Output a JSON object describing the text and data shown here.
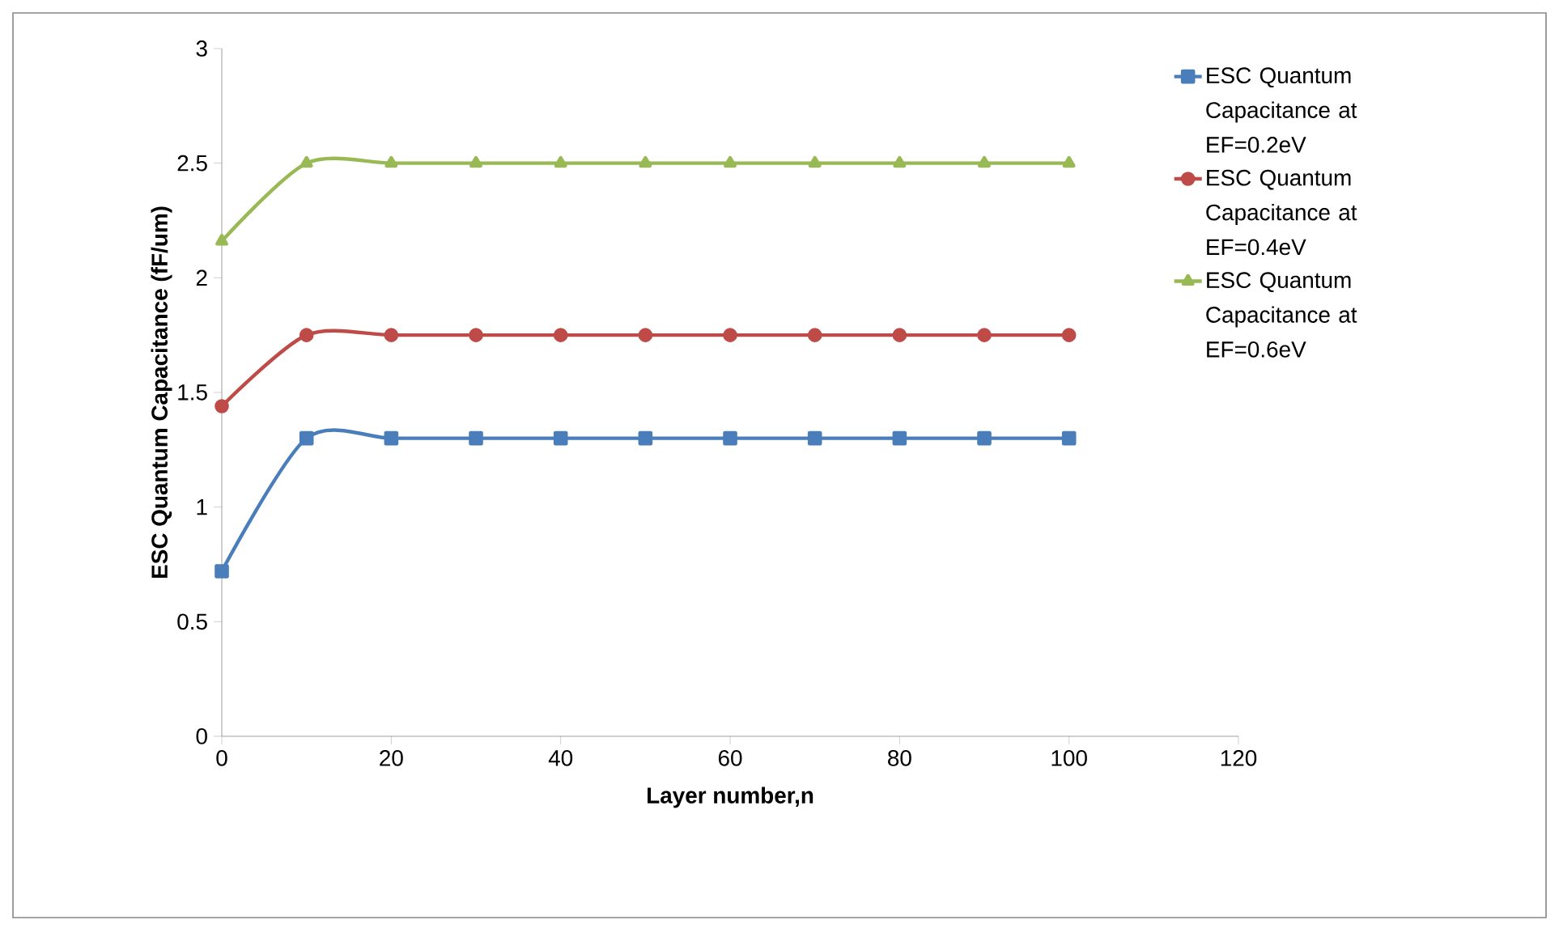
{
  "chart_data": {
    "type": "line",
    "xlabel": "Layer number,n",
    "ylabel": "ESC Quantum Capacitance (fF/um)",
    "x": [
      0,
      10,
      20,
      30,
      40,
      50,
      60,
      70,
      80,
      90,
      100
    ],
    "xlim": [
      0,
      120
    ],
    "xticks": [
      0,
      20,
      40,
      60,
      80,
      100,
      120
    ],
    "ylim": [
      0,
      3
    ],
    "yticks": [
      0,
      0.5,
      1,
      1.5,
      2,
      2.5,
      3
    ],
    "legend": "right",
    "line_style": "solid",
    "series": [
      {
        "name": "ESC Quantum Capacitance at EF=0.2eV",
        "color": "#4a7ebb",
        "marker": "square",
        "values": [
          0.72,
          1.3,
          1.3,
          1.3,
          1.3,
          1.3,
          1.3,
          1.3,
          1.3,
          1.3,
          1.3
        ]
      },
      {
        "name": "ESC Quantum Capacitance at EF=0.4eV",
        "color": "#be4b48",
        "marker": "circle",
        "values": [
          1.44,
          1.75,
          1.75,
          1.75,
          1.75,
          1.75,
          1.75,
          1.75,
          1.75,
          1.75,
          1.75
        ]
      },
      {
        "name": "ESC Quantum Capacitance at EF=0.6eV",
        "color": "#98b954",
        "marker": "triangle",
        "values": [
          2.16,
          2.5,
          2.5,
          2.5,
          2.5,
          2.5,
          2.5,
          2.5,
          2.5,
          2.5,
          2.5
        ]
      }
    ]
  }
}
